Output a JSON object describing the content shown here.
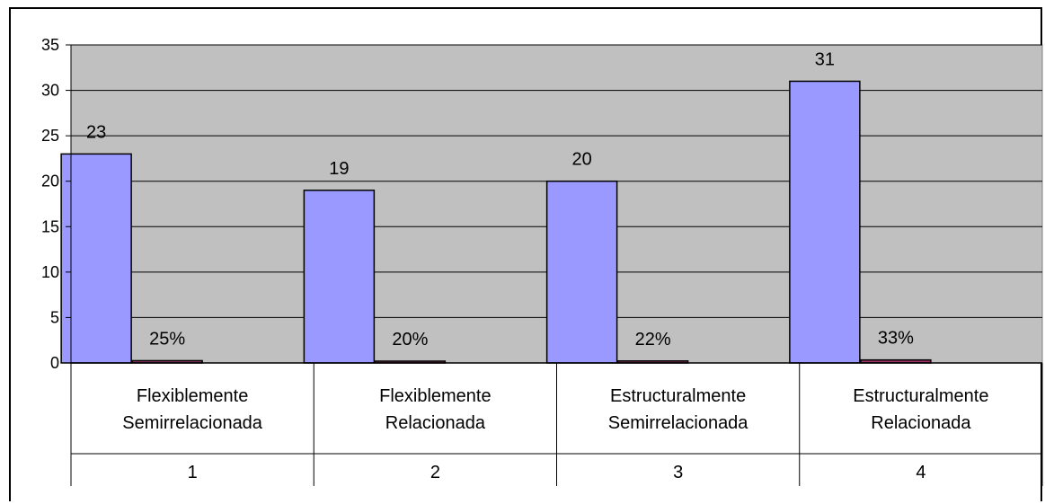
{
  "chart_data": {
    "type": "bar",
    "title": "",
    "xlabel": "",
    "ylabel": "",
    "ylim": [
      0,
      35
    ],
    "yticks": [
      "0",
      "5",
      "10",
      "15",
      "20",
      "25",
      "30",
      "35"
    ],
    "grid": true,
    "legend": "none",
    "categories": [
      {
        "name_lines": [
          "Flexiblemente",
          "Semirrelacionada"
        ],
        "number": "1"
      },
      {
        "name_lines": [
          "Flexiblemente",
          "Relacionada"
        ],
        "number": "2"
      },
      {
        "name_lines": [
          "Estructuralmente",
          "Semirrelacionada"
        ],
        "number": "3"
      },
      {
        "name_lines": [
          "Estructuralmente",
          "Relacionada"
        ],
        "number": "4"
      }
    ],
    "series": [
      {
        "values": [
          23,
          19,
          20,
          31
        ],
        "labels": [
          "23",
          "19",
          "20",
          "31"
        ],
        "color": "#9999ff"
      },
      {
        "values": [
          0.25,
          0.2,
          0.22,
          0.33
        ],
        "labels": [
          "25%",
          "20%",
          "22%",
          "33%"
        ],
        "color": "#993366"
      }
    ],
    "colors": {
      "plot_background": "#c0c0c0",
      "gridline": "#000000"
    }
  }
}
